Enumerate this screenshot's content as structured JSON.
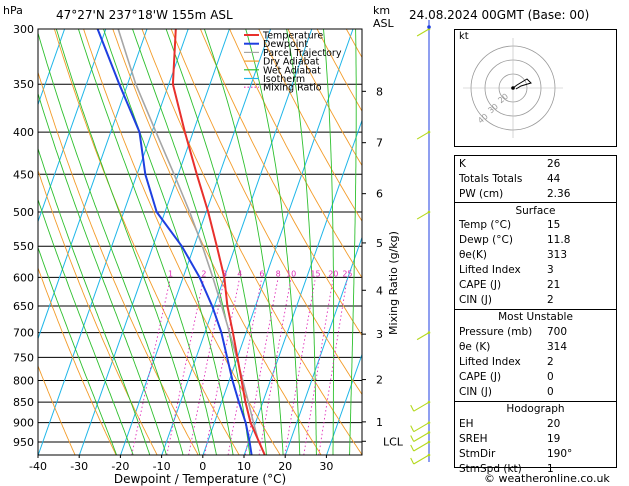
{
  "header": {
    "hpa_label": "hPa",
    "location": "47°27'N  237°18'W  155m  ASL",
    "km_label": "km",
    "asl_label": "ASL",
    "datetime": "24.08.2024  00GMT  (Base: 00)"
  },
  "footer": {
    "copyright": "© weatheronline.co.uk"
  },
  "chart_data": {
    "type": "line",
    "subtype": "skew-T log-P diagram",
    "xlabel": "Dewpoint / Temperature (°C)",
    "ylabel": "Mixing Ratio (g/kg)",
    "x_ticks": [
      -40,
      -30,
      -20,
      -10,
      0,
      10,
      20,
      30
    ],
    "pressure_levels": [
      300,
      350,
      400,
      450,
      500,
      550,
      600,
      650,
      700,
      750,
      800,
      850,
      900,
      950
    ],
    "km_ticks": [
      {
        "label": "8",
        "p": 357
      },
      {
        "label": "7",
        "p": 412
      },
      {
        "label": "6",
        "p": 475
      },
      {
        "label": "5",
        "p": 545
      },
      {
        "label": "4",
        "p": 622
      },
      {
        "label": "3",
        "p": 703
      },
      {
        "label": "2",
        "p": 798
      },
      {
        "label": "1",
        "p": 898
      },
      {
        "label": "LCL",
        "p": 948
      }
    ],
    "mixing_ratio_labels": [
      "1",
      "2",
      "3",
      "4",
      "6",
      "8",
      "10",
      "15",
      "20",
      "25"
    ],
    "mixing_ratio_values": [
      1,
      2,
      3,
      4,
      6,
      8,
      10,
      15,
      20,
      25
    ],
    "legend": [
      "Temperature",
      "Dewpoint",
      "Parcel Trajectory",
      "Dry Adiabat",
      "Wet Adiabat",
      "Isotherm",
      "Mixing Ratio"
    ],
    "legend_placement": "top-left",
    "colors": {
      "temperature": "#e8302c",
      "dewpoint": "#1f3fe0",
      "parcel": "#a6a6a6",
      "dry_adiabat": "#f39c2a",
      "wet_adiabat": "#2ec02e",
      "isotherm": "#1fb6e8",
      "mixing_ratio": "#e02cb8",
      "wind": "#b4d81c"
    },
    "series": [
      {
        "name": "Temperature",
        "points": [
          [
            985,
            15
          ],
          [
            950,
            12.5
          ],
          [
            900,
            8.8
          ],
          [
            850,
            5.8
          ],
          [
            800,
            3
          ],
          [
            750,
            0
          ],
          [
            700,
            -3.2
          ],
          [
            650,
            -6.8
          ],
          [
            600,
            -10
          ],
          [
            550,
            -14.5
          ],
          [
            500,
            -19.5
          ],
          [
            450,
            -25.5
          ],
          [
            400,
            -32
          ],
          [
            350,
            -39
          ],
          [
            300,
            -43
          ]
        ]
      },
      {
        "name": "Dewpoint",
        "points": [
          [
            985,
            11.8
          ],
          [
            950,
            10.2
          ],
          [
            900,
            7.6
          ],
          [
            850,
            4.2
          ],
          [
            800,
            0.8
          ],
          [
            750,
            -2.5
          ],
          [
            700,
            -6
          ],
          [
            650,
            -10.5
          ],
          [
            600,
            -16
          ],
          [
            550,
            -23
          ],
          [
            500,
            -32
          ],
          [
            450,
            -38
          ],
          [
            400,
            -43
          ],
          [
            350,
            -52
          ],
          [
            300,
            -62
          ]
        ]
      },
      {
        "name": "Parcel Trajectory",
        "points": [
          [
            985,
            15
          ],
          [
            948,
            12.3
          ],
          [
            900,
            9.5
          ],
          [
            850,
            6.5
          ],
          [
            800,
            3.3
          ],
          [
            750,
            -0.2
          ],
          [
            700,
            -4
          ],
          [
            650,
            -8.2
          ],
          [
            600,
            -12.8
          ],
          [
            550,
            -18
          ],
          [
            500,
            -24
          ],
          [
            450,
            -31
          ],
          [
            400,
            -39
          ],
          [
            350,
            -48
          ],
          [
            300,
            -57
          ]
        ]
      }
    ],
    "wind_levels": [
      300,
      400,
      500,
      700,
      850,
      900,
      925,
      950,
      985
    ]
  },
  "hodograph": {
    "label": "kt",
    "ring_labels": [
      "40",
      "30",
      "20"
    ]
  },
  "indices": [
    {
      "key": "K",
      "value": "26"
    },
    {
      "key": "Totals Totals",
      "value": "44"
    },
    {
      "key": "PW (cm)",
      "value": "2.36"
    }
  ],
  "surface": {
    "title": "Surface",
    "rows": [
      {
        "key": "Temp (°C)",
        "value": "15"
      },
      {
        "key": "Dewp (°C)",
        "value": "11.8"
      },
      {
        "key": "θe(K)",
        "value": "313"
      },
      {
        "key": "Lifted Index",
        "value": "3"
      },
      {
        "key": "CAPE (J)",
        "value": "21"
      },
      {
        "key": "CIN (J)",
        "value": "2"
      }
    ]
  },
  "most_unstable": {
    "title": "Most Unstable",
    "rows": [
      {
        "key": "Pressure (mb)",
        "value": "700"
      },
      {
        "key": "θe (K)",
        "value": "314"
      },
      {
        "key": "Lifted Index",
        "value": "2"
      },
      {
        "key": "CAPE (J)",
        "value": "0"
      },
      {
        "key": "CIN (J)",
        "value": "0"
      }
    ]
  },
  "hodograph_stats": {
    "title": "Hodograph",
    "rows": [
      {
        "key": "EH",
        "value": "20"
      },
      {
        "key": "SREH",
        "value": "19"
      },
      {
        "key": "StmDir",
        "value": "190°"
      },
      {
        "key": "StmSpd (kt)",
        "value": "1"
      }
    ]
  }
}
